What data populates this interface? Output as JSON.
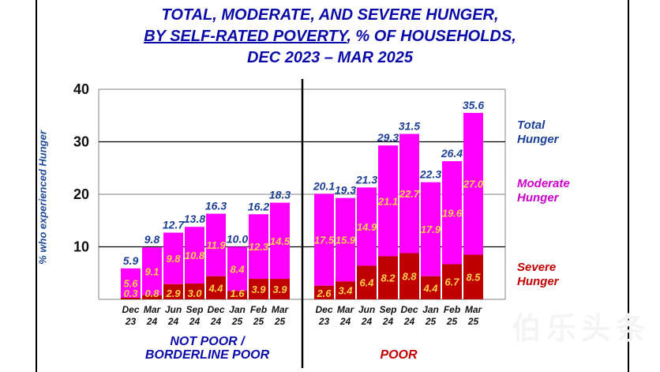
{
  "chart_data": {
    "type": "bar",
    "stacked": true,
    "title_lines": [
      "TOTAL, MODERATE, AND SEVERE HUNGER,",
      "BY SELF-RATED POVERTY",
      ", % OF HOUSEHOLDS,",
      "DEC 2023 – MAR 2025"
    ],
    "ylabel": "% who experienced Hunger",
    "xlabel": "",
    "ylim": [
      0,
      40
    ],
    "yticks": [
      10,
      20,
      30,
      40
    ],
    "grid": true,
    "legend": {
      "placement": "right",
      "entries": [
        {
          "line1": "Total",
          "line2": "Hunger",
          "color": "#1c3f94"
        },
        {
          "line1": "Moderate",
          "line2": "Hunger",
          "color": "#ff00ff"
        },
        {
          "line1": "Severe",
          "line2": "Hunger",
          "color": "#c00000"
        }
      ]
    },
    "groups": [
      {
        "name_line1": "NOT POOR /",
        "name_line2": "BORDERLINE POOR",
        "name_color": "#0a0aa8",
        "categories": [
          {
            "month": "Dec",
            "year": "23"
          },
          {
            "month": "Mar",
            "year": "24"
          },
          {
            "month": "Jun",
            "year": "24"
          },
          {
            "month": "Sep",
            "year": "24"
          },
          {
            "month": "Dec",
            "year": "24"
          },
          {
            "month": "Jan",
            "year": "25"
          },
          {
            "month": "Feb",
            "year": "25"
          },
          {
            "month": "Mar",
            "year": "25"
          }
        ],
        "total": [
          5.9,
          9.8,
          12.7,
          13.8,
          16.3,
          10.0,
          16.2,
          18.3
        ],
        "moderate": [
          5.6,
          9.1,
          9.8,
          10.8,
          11.9,
          8.4,
          12.3,
          14.5
        ],
        "severe": [
          0.3,
          0.8,
          2.9,
          3.0,
          4.4,
          1.6,
          3.9,
          3.9
        ]
      },
      {
        "name_line1": "POOR",
        "name_line2": "",
        "name_color": "#c00000",
        "categories": [
          {
            "month": "Dec",
            "year": "23"
          },
          {
            "month": "Mar",
            "year": "24"
          },
          {
            "month": "Jun",
            "year": "24"
          },
          {
            "month": "Sep",
            "year": "24"
          },
          {
            "month": "Dec",
            "year": "24"
          },
          {
            "month": "Jan",
            "year": "25"
          },
          {
            "month": "Feb",
            "year": "25"
          },
          {
            "month": "Mar",
            "year": "25"
          }
        ],
        "total": [
          20.1,
          19.3,
          21.3,
          29.3,
          31.5,
          22.3,
          26.4,
          35.6
        ],
        "moderate": [
          17.5,
          15.9,
          14.9,
          21.1,
          22.7,
          17.9,
          19.6,
          27.0
        ],
        "severe": [
          2.6,
          3.4,
          6.4,
          8.2,
          8.8,
          4.4,
          6.7,
          8.5
        ]
      }
    ],
    "colors": {
      "moderate": "#ff00ff",
      "severe": "#c00000",
      "total_label": "#1c3f94",
      "segment_label": "#ffd24a"
    }
  },
  "watermark": "伯乐头条"
}
